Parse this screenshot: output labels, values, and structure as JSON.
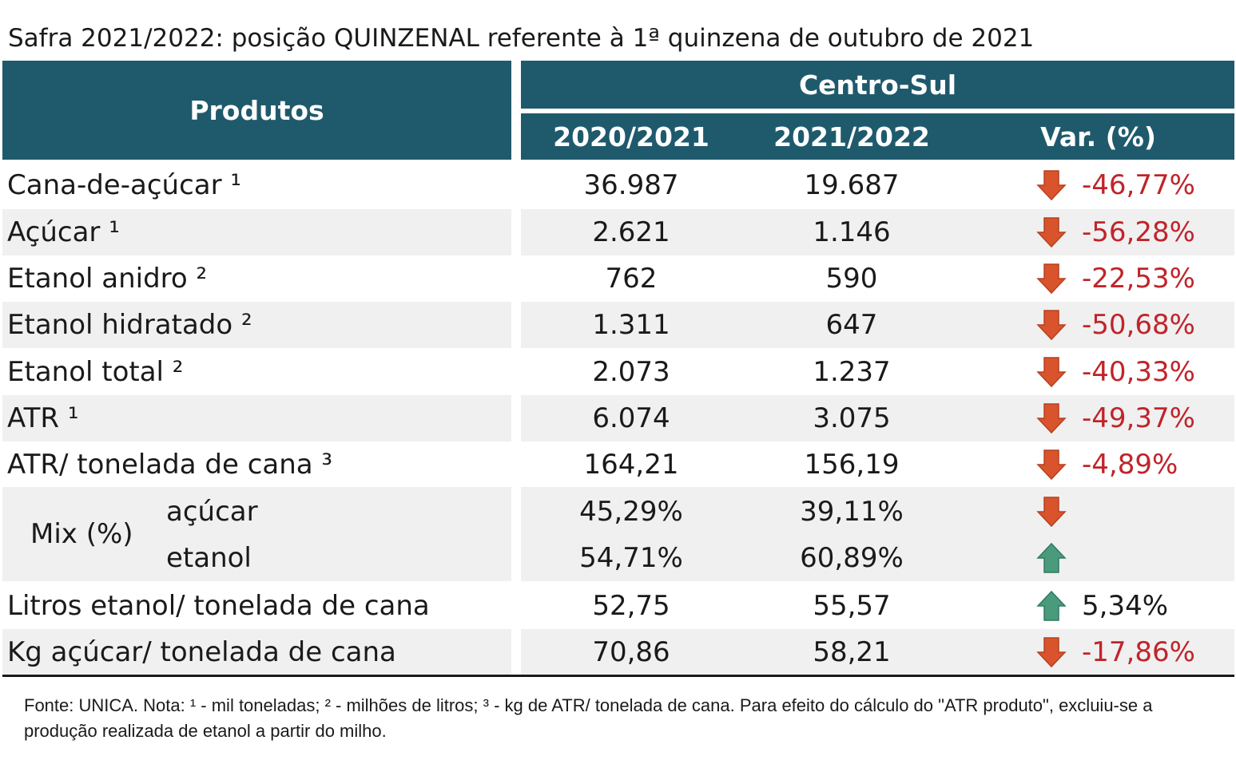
{
  "title": "Safra 2021/2022: posição QUINZENAL referente à 1ª quinzena de outubro de 2021",
  "header": {
    "produtos": "Produtos",
    "region": "Centro-Sul",
    "col1": "2020/2021",
    "col2": "2021/2022",
    "col3": "Var. (%)"
  },
  "colors": {
    "header_bg": "#1f5a6c",
    "negative": "#c0242a",
    "arrow_down": "#d9532c",
    "arrow_up": "#4a9a7c",
    "row_shade": "#f0f0f0"
  },
  "rows": [
    {
      "product": "Cana-de-açúcar ¹",
      "v1": "36.987",
      "v2": "19.687",
      "arrow": "down-arrow-icon",
      "var": "-46,77%"
    },
    {
      "product": "Açúcar ¹",
      "v1": "2.621",
      "v2": "1.146",
      "arrow": "down-arrow-icon",
      "var": "-56,28%"
    },
    {
      "product": "Etanol anidro ²",
      "v1": "762",
      "v2": "590",
      "arrow": "down-arrow-icon",
      "var": "-22,53%"
    },
    {
      "product": "Etanol hidratado ²",
      "v1": "1.311",
      "v2": "647",
      "arrow": "down-arrow-icon",
      "var": "-50,68%"
    },
    {
      "product": "Etanol total ²",
      "v1": "2.073",
      "v2": "1.237",
      "arrow": "down-arrow-icon",
      "var": "-40,33%"
    },
    {
      "product": "ATR ¹",
      "v1": "6.074",
      "v2": "3.075",
      "arrow": "down-arrow-icon",
      "var": "-49,37%"
    },
    {
      "product": "ATR/ tonelada de cana ³",
      "v1": "164,21",
      "v2": "156,19",
      "arrow": "down-arrow-icon",
      "var": "-4,89%"
    }
  ],
  "mix": {
    "label": "Mix (%)",
    "rows": [
      {
        "product": "açúcar",
        "v1": "45,29%",
        "v2": "39,11%",
        "arrow": "down-arrow-icon"
      },
      {
        "product": "etanol",
        "v1": "54,71%",
        "v2": "60,89%",
        "arrow": "up-arrow-icon"
      }
    ]
  },
  "rows_after": [
    {
      "product": "Litros etanol/ tonelada de cana",
      "v1": "52,75",
      "v2": "55,57",
      "arrow": "up-arrow-icon",
      "var": "5,34%"
    },
    {
      "product": "Kg açúcar/ tonelada de cana",
      "v1": "70,86",
      "v2": "58,21",
      "arrow": "down-arrow-icon",
      "var": "-17,86%"
    }
  ],
  "footnote": "Fonte: UNICA. Nota: ¹ - mil toneladas; ² - milhões de litros; ³ - kg de ATR/ tonelada de cana. Para efeito do cálculo do \"ATR produto\", excluiu-se a produção realizada de etanol a partir do milho."
}
